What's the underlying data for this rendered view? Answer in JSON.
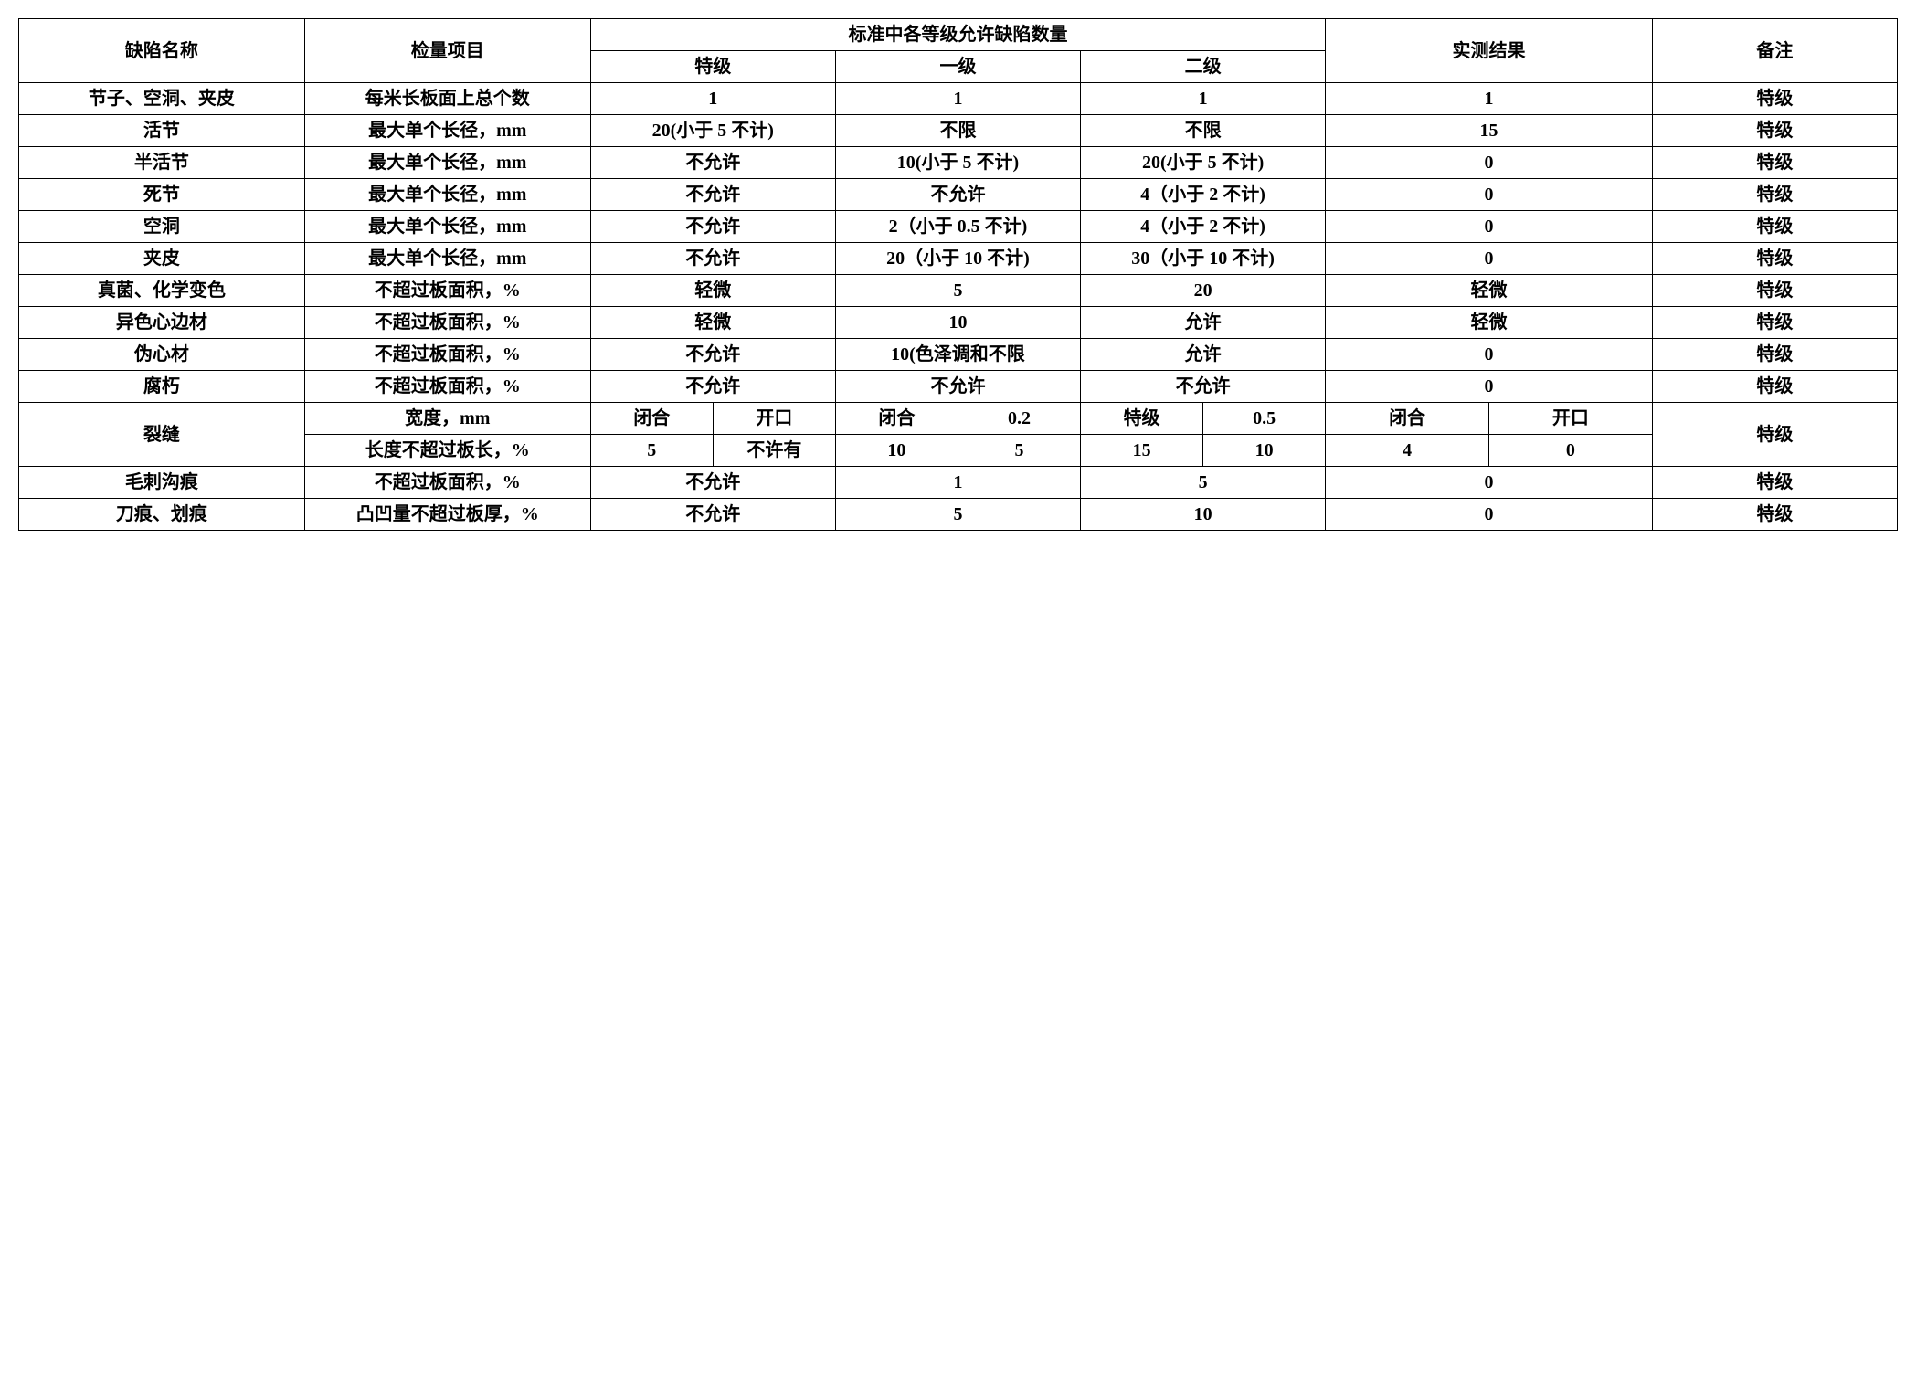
{
  "header": {
    "defect_name": "缺陷名称",
    "inspection_item": "检量项目",
    "standard_group": "标准中各等级允许缺陷数量",
    "grade_special": "特级",
    "grade_one": "一级",
    "grade_two": "二级",
    "measured_result": "实测结果",
    "remark": "备注"
  },
  "rows": {
    "r1": {
      "name": "节子、空洞、夹皮",
      "inspect": "每米长板面上总个数",
      "special": "1",
      "one": "1",
      "two": "1",
      "result": "1",
      "remark": "特级"
    },
    "r2": {
      "name": "活节",
      "inspect": "最大单个长径，mm",
      "special": "20(小于 5 不计)",
      "one": "不限",
      "two": "不限",
      "result": "15",
      "remark": "特级"
    },
    "r3": {
      "name": "半活节",
      "inspect": "最大单个长径，mm",
      "special": "不允许",
      "one": "10(小于 5 不计)",
      "two": "20(小于 5 不计)",
      "result": "0",
      "remark": "特级"
    },
    "r4": {
      "name": "死节",
      "inspect": "最大单个长径，mm",
      "special": "不允许",
      "one": "不允许",
      "two": "4（小于 2 不计)",
      "result": "0",
      "remark": "特级"
    },
    "r5": {
      "name": "空洞",
      "inspect": "最大单个长径，mm",
      "special": "不允许",
      "one": "2（小于 0.5 不计)",
      "two": "4（小于 2 不计)",
      "result": "0",
      "remark": "特级"
    },
    "r6": {
      "name": "夹皮",
      "inspect": "最大单个长径，mm",
      "special": "不允许",
      "one": "20（小于 10 不计)",
      "two": "30（小于 10 不计)",
      "result": "0",
      "remark": "特级"
    },
    "r7": {
      "name": "真菌、化学变色",
      "inspect": "不超过板面积，%",
      "special": "轻微",
      "one": "5",
      "two": "20",
      "result": "轻微",
      "remark": "特级"
    },
    "r8": {
      "name": "异色心边材",
      "inspect": "不超过板面积，%",
      "special": "轻微",
      "one": "10",
      "two": "允许",
      "result": "轻微",
      "remark": "特级"
    },
    "r9": {
      "name": "伪心材",
      "inspect": "不超过板面积，%",
      "special": "不允许",
      "one": "10(色泽调和不限",
      "two": "允许",
      "result": "0",
      "remark": "特级"
    },
    "r10": {
      "name": "腐朽",
      "inspect": "不超过板面积，%",
      "special": "不允许",
      "one": "不允许",
      "two": "不允许",
      "result": "0",
      "remark": "特级"
    },
    "r11a": {
      "name": "裂缝",
      "inspect": "宽度，mm",
      "special_a": "闭合",
      "special_b": "开口",
      "one_a": "闭合",
      "one_b": "0.2",
      "two_a": "特级",
      "two_b": "0.5",
      "result_a": "闭合",
      "result_b": "开口",
      "remark": "特级"
    },
    "r11b": {
      "inspect": "长度不超过板长，%",
      "special_a": "5",
      "special_b": "不许有",
      "one_a": "10",
      "one_b": "5",
      "two_a": "15",
      "two_b": "10",
      "result_a": "4",
      "result_b": "0"
    },
    "r12": {
      "name": "毛刺沟痕",
      "inspect": "不超过板面积，%",
      "special": "不允许",
      "one": "1",
      "two": "5",
      "result": "0",
      "remark": "特级"
    },
    "r13": {
      "name": "刀痕、划痕",
      "inspect": "凸凹量不超过板厚，%",
      "special": "不允许",
      "one": "5",
      "two": "10",
      "result": "0",
      "remark": "特级"
    }
  }
}
